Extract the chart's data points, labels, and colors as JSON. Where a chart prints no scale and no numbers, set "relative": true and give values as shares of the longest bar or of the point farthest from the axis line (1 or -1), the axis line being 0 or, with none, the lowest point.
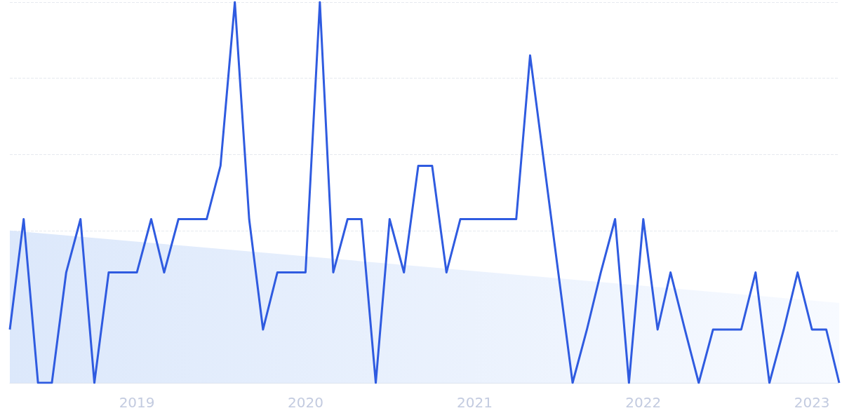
{
  "chart_data": {
    "type": "line",
    "relative": true,
    "grid": "y",
    "marker": "none",
    "x": [
      "2018-04",
      "2018-05",
      "2018-06",
      "2018-07",
      "2018-08",
      "2018-09",
      "2018-10",
      "2018-11",
      "2018-12",
      "2019-01",
      "2019-02",
      "2019-03",
      "2019-04",
      "2019-05",
      "2019-06",
      "2019-07",
      "2019-08",
      "2019-09",
      "2019-10",
      "2019-11",
      "2019-12",
      "2020-01",
      "2020-02",
      "2020-03",
      "2020-04",
      "2020-05",
      "2020-06",
      "2020-07",
      "2020-08",
      "2020-09",
      "2020-10",
      "2020-11",
      "2020-12",
      "2021-01",
      "2021-02",
      "2021-03",
      "2021-04",
      "2021-05",
      "2021-06",
      "2021-07",
      "2021-08",
      "2021-09",
      "2021-10",
      "2021-11",
      "2021-12",
      "2022-01",
      "2022-02",
      "2022-03",
      "2022-04",
      "2022-05",
      "2022-06",
      "2022-07",
      "2022-08",
      "2022-09",
      "2022-10",
      "2022-11",
      "2022-12",
      "2023-01",
      "2023-02",
      "2023-03"
    ],
    "xlim": [
      "2018-04",
      "2023-03"
    ],
    "xticks": [
      {
        "value": "2019-01",
        "label": "2019"
      },
      {
        "value": "2020-01",
        "label": "2020"
      },
      {
        "value": "2021-01",
        "label": "2021"
      },
      {
        "value": "2022-01",
        "label": "2022"
      },
      {
        "value": "2023-01",
        "label": "2023"
      }
    ],
    "series": [
      {
        "type": "area",
        "color": "#dce8fb",
        "x": [
          "2018-04",
          "2023-03"
        ],
        "values": [
          0.4,
          0.21
        ]
      },
      {
        "color": "#2f5be0",
        "line_style": "solid",
        "values": [
          0.14,
          0.43,
          0,
          0,
          0.29,
          0.43,
          0,
          0.29,
          0.29,
          0.29,
          0.43,
          0.29,
          0.43,
          0.43,
          0.43,
          0.57,
          1,
          0.43,
          0.14,
          0.29,
          0.29,
          0.29,
          1,
          0.29,
          0.43,
          0.43,
          0,
          0.43,
          0.29,
          0.57,
          0.57,
          0.29,
          0.43,
          0.43,
          0.43,
          0.43,
          0.43,
          0.86,
          0.57,
          0.29,
          0,
          0.14,
          0.29,
          0.43,
          0,
          0.43,
          0.14,
          0.29,
          0.14,
          0,
          0.14,
          0.14,
          0.14,
          0.29,
          0,
          0.14,
          0.29,
          0.14,
          0.14,
          0
        ]
      }
    ]
  }
}
